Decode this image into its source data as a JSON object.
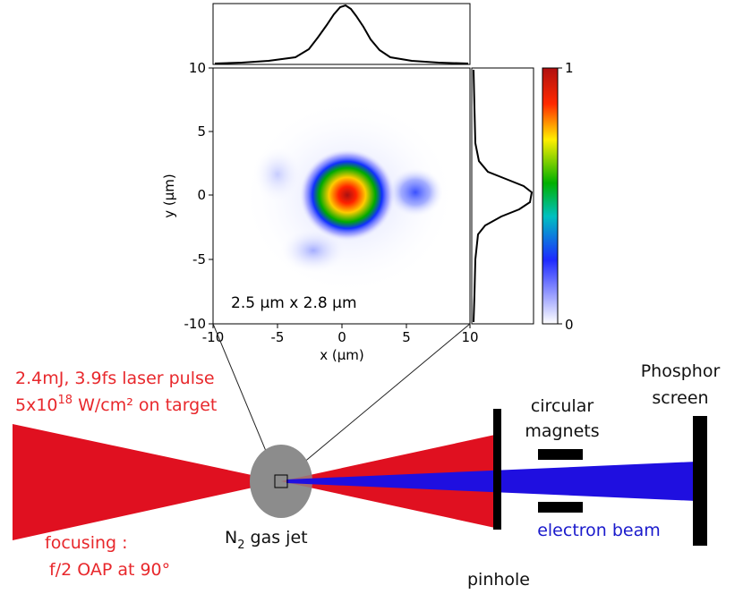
{
  "focal_spot": {
    "annotation": "2.5 µm x 2.8 µm",
    "x_axis_label": "x (µm)",
    "y_axis_label": "y (µm)",
    "x_ticks": [
      "-10",
      "-5",
      "0",
      "5",
      "10"
    ],
    "y_ticks": [
      "10",
      "5",
      "0",
      "-5",
      "-10"
    ],
    "colorbar_ticks": [
      "1",
      "0"
    ],
    "colormap": [
      "#ffffff",
      "#2222ff",
      "#00aa00",
      "#ffdd00",
      "#ff2200",
      "#aa1111"
    ]
  },
  "laser": {
    "line1": "2.4mJ, 3.9fs laser pulse",
    "line2_prefix": "5x10",
    "line2_exp": "18",
    "line2_suffix": " W/cm² on target",
    "color": "#e01020"
  },
  "focusing": {
    "line1": "focusing :",
    "line2": "f/2 OAP at 90°"
  },
  "gas_jet": {
    "prefix": "N",
    "sub": "2",
    "suffix": " gas jet",
    "color": "#8c8c8c"
  },
  "magnets": {
    "line1": "circular",
    "line2": "magnets"
  },
  "screen": {
    "line1": "Phosphor",
    "line2": "screen"
  },
  "pinhole": {
    "label": "pinhole"
  },
  "electron_beam": {
    "label": "electron beam",
    "color": "#1f0fe0"
  }
}
